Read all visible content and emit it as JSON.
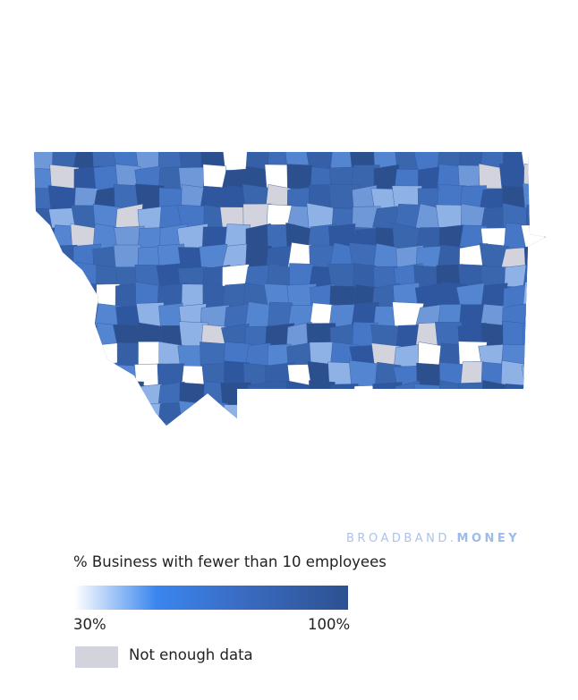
{
  "brand": {
    "first": "BROADBAND.",
    "second": "MONEY"
  },
  "legend": {
    "title": "% Business with fewer than 10 employees",
    "min_label": "30%",
    "max_label": "100%",
    "no_data_label": "Not enough data"
  }
}
